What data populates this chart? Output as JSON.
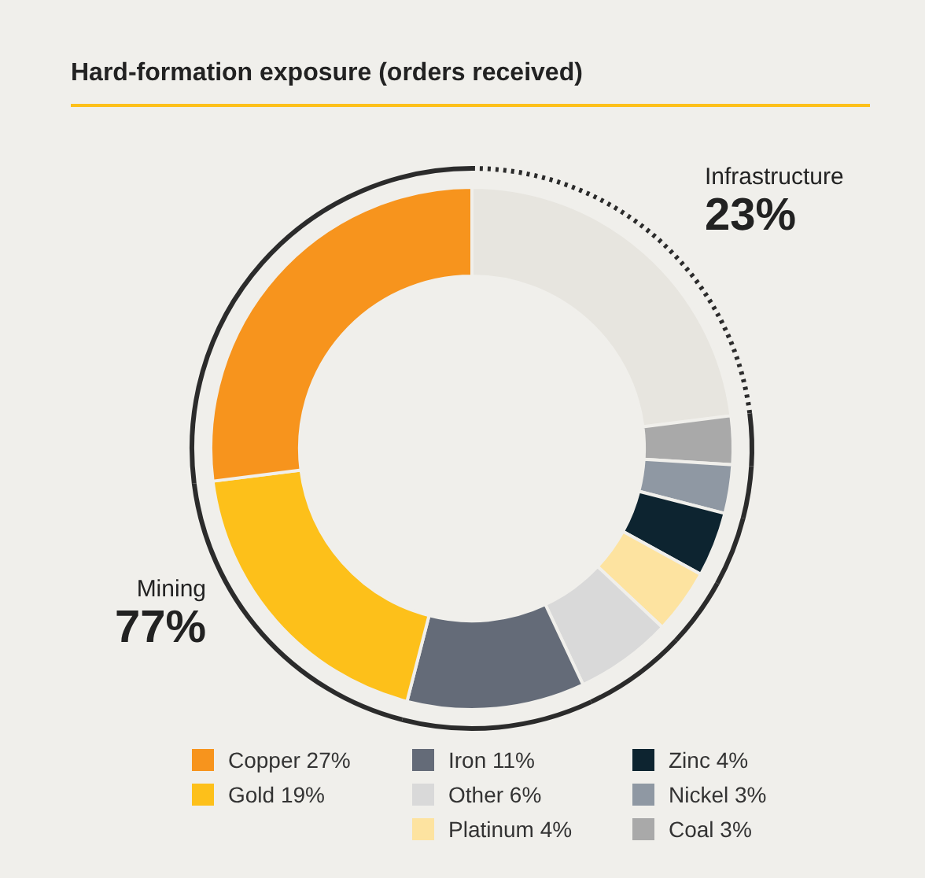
{
  "chart_data": {
    "type": "donut",
    "title": "Hard-formation exposure (orders received)",
    "categories": [
      "Infrastructure",
      "Coal",
      "Nickel",
      "Zinc",
      "Platinum",
      "Other",
      "Iron",
      "Gold",
      "Copper"
    ],
    "values": [
      23,
      3,
      3,
      4,
      4,
      6,
      11,
      19,
      27
    ],
    "value_labels": [
      "23%",
      "3%",
      "3%",
      "4%",
      "4%",
      "6%",
      "11%",
      "19%",
      "27%"
    ],
    "colors": [
      null,
      "#a9a9a9",
      "#8f98a3",
      "#0d2430",
      "#fde3a0",
      "#d9d9d9",
      "#646b78",
      "#fdc01a",
      "#f7941d"
    ],
    "annotations": [
      "Mining 77%"
    ],
    "legend": "bottom"
  }
}
